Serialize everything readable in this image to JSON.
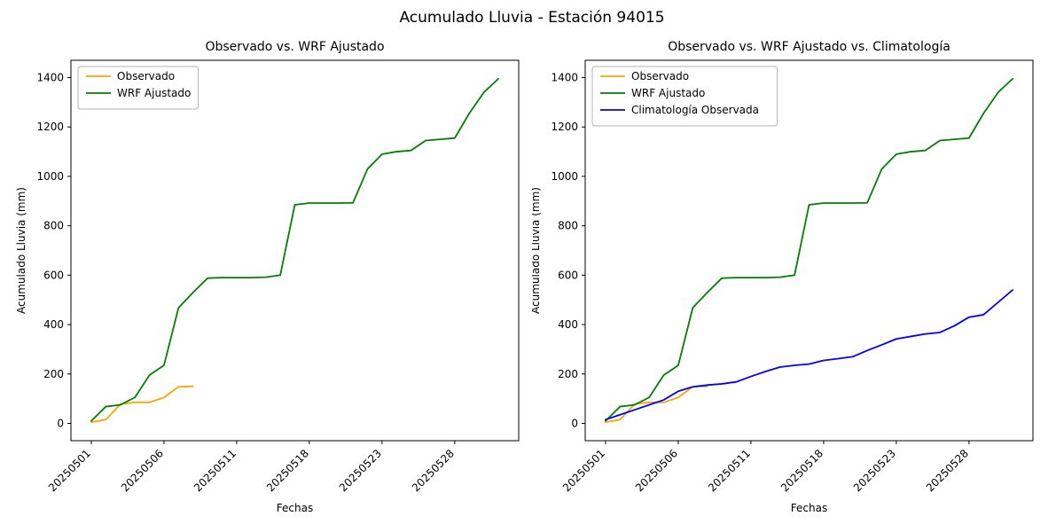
{
  "figure": {
    "title": "Acumulado Lluvia - Estación 94015"
  },
  "chart_data": [
    {
      "type": "line",
      "title": "Observado vs. WRF Ajustado",
      "xlabel": "Fechas",
      "ylabel": "Acumulado Lluvia (mm)",
      "ylim": [
        0,
        1400
      ],
      "yticks": [
        0,
        200,
        400,
        600,
        800,
        1000,
        1200,
        1400
      ],
      "x_count": 29,
      "x_tick_indices": [
        0,
        5,
        10,
        15,
        20,
        25
      ],
      "x_tick_labels": [
        "20250501",
        "20250506",
        "20250511",
        "20250518",
        "20250523",
        "20250528"
      ],
      "grid": false,
      "legend_position": "upper left",
      "series": [
        {
          "name": "Observado",
          "color": "#ffa500",
          "values": [
            5,
            15,
            78,
            85,
            85,
            105,
            148,
            150
          ]
        },
        {
          "name": "WRF Ajustado",
          "color": "#008000",
          "values": [
            10,
            68,
            75,
            105,
            195,
            235,
            468,
            530,
            588,
            590,
            590,
            590,
            592,
            600,
            885,
            892,
            892,
            892,
            893,
            1030,
            1090,
            1100,
            1105,
            1145,
            1150,
            1155,
            1255,
            1340,
            1395
          ]
        }
      ]
    },
    {
      "type": "line",
      "title": "Observado vs. WRF Ajustado vs. Climatología",
      "xlabel": "Fechas",
      "ylabel": "Acumulado Lluvia (mm)",
      "ylim": [
        0,
        1400
      ],
      "yticks": [
        0,
        200,
        400,
        600,
        800,
        1000,
        1200,
        1400
      ],
      "x_count": 29,
      "x_tick_indices": [
        0,
        5,
        10,
        15,
        20,
        25
      ],
      "x_tick_labels": [
        "20250501",
        "20250506",
        "20250511",
        "20250518",
        "20250523",
        "20250528"
      ],
      "grid": false,
      "legend_position": "upper left",
      "series": [
        {
          "name": "Observado",
          "color": "#ffa500",
          "values": [
            5,
            15,
            78,
            85,
            85,
            105,
            148,
            150
          ]
        },
        {
          "name": "WRF Ajustado",
          "color": "#008000",
          "values": [
            10,
            68,
            75,
            105,
            195,
            235,
            468,
            530,
            588,
            590,
            590,
            590,
            592,
            600,
            885,
            892,
            892,
            892,
            893,
            1030,
            1090,
            1100,
            1105,
            1145,
            1150,
            1155,
            1255,
            1340,
            1395
          ]
        },
        {
          "name": "Climatología Observada",
          "color": "#0000ff",
          "values": [
            15,
            35,
            55,
            75,
            95,
            130,
            148,
            155,
            160,
            168,
            190,
            210,
            228,
            235,
            240,
            255,
            262,
            270,
            295,
            318,
            342,
            352,
            362,
            368,
            395,
            430,
            440,
            490,
            540
          ]
        }
      ]
    }
  ]
}
